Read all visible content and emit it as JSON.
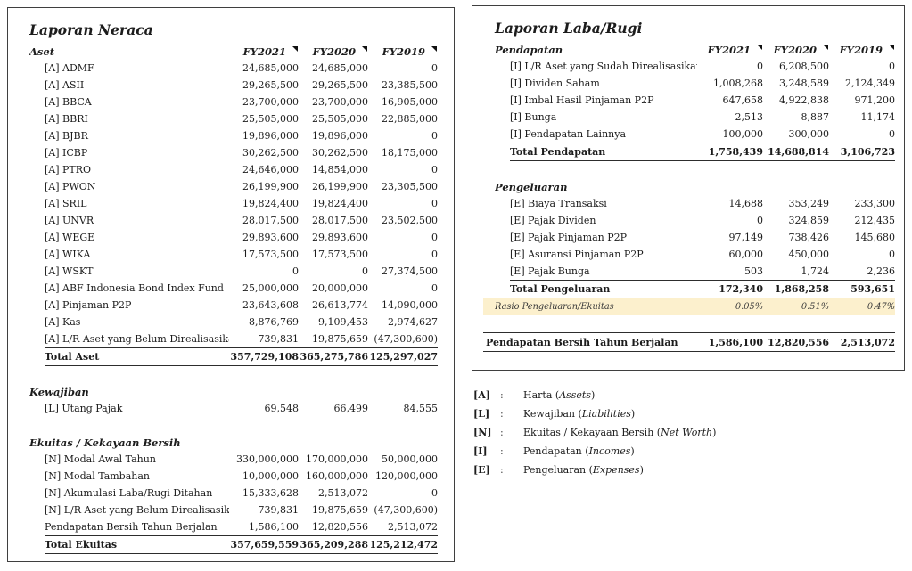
{
  "left_panel": {
    "title": "Laporan Neraca",
    "header_label": "Aset",
    "columns": [
      "FY2021",
      "FY2020",
      "FY2019"
    ],
    "rows": [
      {
        "type": "colheader"
      },
      {
        "type": "item",
        "label": "[A] ADMF",
        "values": [
          "24,685,000",
          "24,685,000",
          "0"
        ]
      },
      {
        "type": "item",
        "label": "[A] ASII",
        "values": [
          "29,265,500",
          "29,265,500",
          "23,385,500"
        ]
      },
      {
        "type": "item",
        "label": "[A] BBCA",
        "values": [
          "23,700,000",
          "23,700,000",
          "16,905,000"
        ]
      },
      {
        "type": "item",
        "label": "[A] BBRI",
        "values": [
          "25,505,000",
          "25,505,000",
          "22,885,000"
        ]
      },
      {
        "type": "item",
        "label": "[A] BJBR",
        "values": [
          "19,896,000",
          "19,896,000",
          "0"
        ]
      },
      {
        "type": "item",
        "label": "[A] ICBP",
        "values": [
          "30,262,500",
          "30,262,500",
          "18,175,000"
        ]
      },
      {
        "type": "item",
        "label": "[A] PTRO",
        "values": [
          "24,646,000",
          "14,854,000",
          "0"
        ]
      },
      {
        "type": "item",
        "label": "[A] PWON",
        "values": [
          "26,199,900",
          "26,199,900",
          "23,305,500"
        ]
      },
      {
        "type": "item",
        "label": "[A] SRIL",
        "values": [
          "19,824,400",
          "19,824,400",
          "0"
        ]
      },
      {
        "type": "item",
        "label": "[A] UNVR",
        "values": [
          "28,017,500",
          "28,017,500",
          "23,502,500"
        ]
      },
      {
        "type": "item",
        "label": "[A] WEGE",
        "values": [
          "29,893,600",
          "29,893,600",
          "0"
        ]
      },
      {
        "type": "item",
        "label": "[A] WIKA",
        "values": [
          "17,573,500",
          "17,573,500",
          "0"
        ]
      },
      {
        "type": "item",
        "label": "[A] WSKT",
        "values": [
          "0",
          "0",
          "27,374,500"
        ]
      },
      {
        "type": "item",
        "label": "[A] ABF Indonesia Bond Index Fund",
        "values": [
          "25,000,000",
          "20,000,000",
          "0"
        ]
      },
      {
        "type": "item",
        "label": "[A] Pinjaman P2P",
        "values": [
          "23,643,608",
          "26,613,774",
          "14,090,000"
        ]
      },
      {
        "type": "item",
        "label": "[A] Kas",
        "values": [
          "8,876,769",
          "9,109,453",
          "2,974,627"
        ]
      },
      {
        "type": "item",
        "label": "[A] L/R Aset yang Belum Direalisasikan",
        "values": [
          "739,831",
          "19,875,659",
          "(47,300,600)"
        ]
      },
      {
        "type": "total",
        "label": "Total Aset",
        "values": [
          "357,729,108",
          "365,275,786",
          "125,297,027"
        ]
      },
      {
        "type": "blank"
      },
      {
        "type": "section",
        "label": "Kewajiban"
      },
      {
        "type": "item",
        "label": "[L] Utang Pajak",
        "values": [
          "69,548",
          "66,499",
          "84,555"
        ]
      },
      {
        "type": "blank"
      },
      {
        "type": "section",
        "label": "Ekuitas / Kekayaan Bersih"
      },
      {
        "type": "item",
        "label": "[N] Modal Awal Tahun",
        "values": [
          "330,000,000",
          "170,000,000",
          "50,000,000"
        ]
      },
      {
        "type": "item",
        "label": "[N] Modal Tambahan",
        "values": [
          "10,000,000",
          "160,000,000",
          "120,000,000"
        ]
      },
      {
        "type": "item",
        "label": "[N] Akumulasi Laba/Rugi Ditahan",
        "values": [
          "15,333,628",
          "2,513,072",
          "0"
        ]
      },
      {
        "type": "item",
        "label": "[N] L/R Aset yang Belum Direalisasikan",
        "values": [
          "739,831",
          "19,875,659",
          "(47,300,600)"
        ]
      },
      {
        "type": "item",
        "label": "Pendapatan Bersih Tahun Berjalan",
        "values": [
          "1,586,100",
          "12,820,556",
          "2,513,072"
        ]
      },
      {
        "type": "total",
        "label": "Total Ekuitas",
        "values": [
          "357,659,559",
          "365,209,288",
          "125,212,472"
        ]
      }
    ]
  },
  "right_panel": {
    "title": "Laporan Laba/Rugi",
    "header_label": "Pendapatan",
    "columns": [
      "FY2021",
      "FY2020",
      "FY2019"
    ],
    "rows": [
      {
        "type": "colheader"
      },
      {
        "type": "item",
        "label": "[I] L/R Aset yang Sudah Direalisasikan",
        "values": [
          "0",
          "6,208,500",
          "0"
        ]
      },
      {
        "type": "item",
        "label": "[I] Dividen Saham",
        "values": [
          "1,008,268",
          "3,248,589",
          "2,124,349"
        ]
      },
      {
        "type": "item",
        "label": "[I] Imbal Hasil Pinjaman P2P",
        "values": [
          "647,658",
          "4,922,838",
          "971,200"
        ]
      },
      {
        "type": "item",
        "label": "[I] Bunga",
        "values": [
          "2,513",
          "8,887",
          "11,174"
        ]
      },
      {
        "type": "item",
        "label": "[I] Pendapatan Lainnya",
        "values": [
          "100,000",
          "300,000",
          "0"
        ]
      },
      {
        "type": "total",
        "label": "Total Pendapatan",
        "values": [
          "1,758,439",
          "14,688,814",
          "3,106,723"
        ]
      },
      {
        "type": "blank"
      },
      {
        "type": "section",
        "label": "Pengeluaran"
      },
      {
        "type": "item",
        "label": "[E] Biaya Transaksi",
        "values": [
          "14,688",
          "353,249",
          "233,300"
        ]
      },
      {
        "type": "item",
        "label": "[E] Pajak Dividen",
        "values": [
          "0",
          "324,859",
          "212,435"
        ]
      },
      {
        "type": "item",
        "label": "[E] Pajak Pinjaman P2P",
        "values": [
          "97,149",
          "738,426",
          "145,680"
        ]
      },
      {
        "type": "item",
        "label": "[E] Asuransi Pinjaman P2P",
        "values": [
          "60,000",
          "450,000",
          "0"
        ]
      },
      {
        "type": "item",
        "label": "[E] Pajak Bunga",
        "values": [
          "503",
          "1,724",
          "2,236"
        ]
      },
      {
        "type": "total",
        "label": "Total Pengeluaran",
        "values": [
          "172,340",
          "1,868,258",
          "593,651"
        ]
      },
      {
        "type": "ratio",
        "label": "Rasio Pengeluaran/Ekuitas",
        "values": [
          "0.05%",
          "0.51%",
          "0.47%"
        ]
      },
      {
        "type": "blank"
      },
      {
        "type": "net",
        "label": "Pendapatan Bersih Tahun Berjalan",
        "values": [
          "1,586,100",
          "12,820,556",
          "2,513,072"
        ]
      }
    ]
  },
  "legend": {
    "separator": ":",
    "items": [
      {
        "code": "[A]",
        "name": "Harta",
        "eng": "Assets"
      },
      {
        "code": "[L]",
        "name": "Kewajiban",
        "eng": "Liabilities"
      },
      {
        "code": "[N]",
        "name": "Ekuitas / Kekayaan Bersih",
        "eng": "Net Worth"
      },
      {
        "code": "[I]",
        "name": "Pendapatan",
        "eng": "Incomes"
      },
      {
        "code": "[E]",
        "name": "Pengeluaran",
        "eng": "Expenses"
      }
    ]
  },
  "colors": {
    "ratio_highlight": "#fcf0cd",
    "border": "#3f3f3f",
    "text": "#1c1c1c"
  }
}
